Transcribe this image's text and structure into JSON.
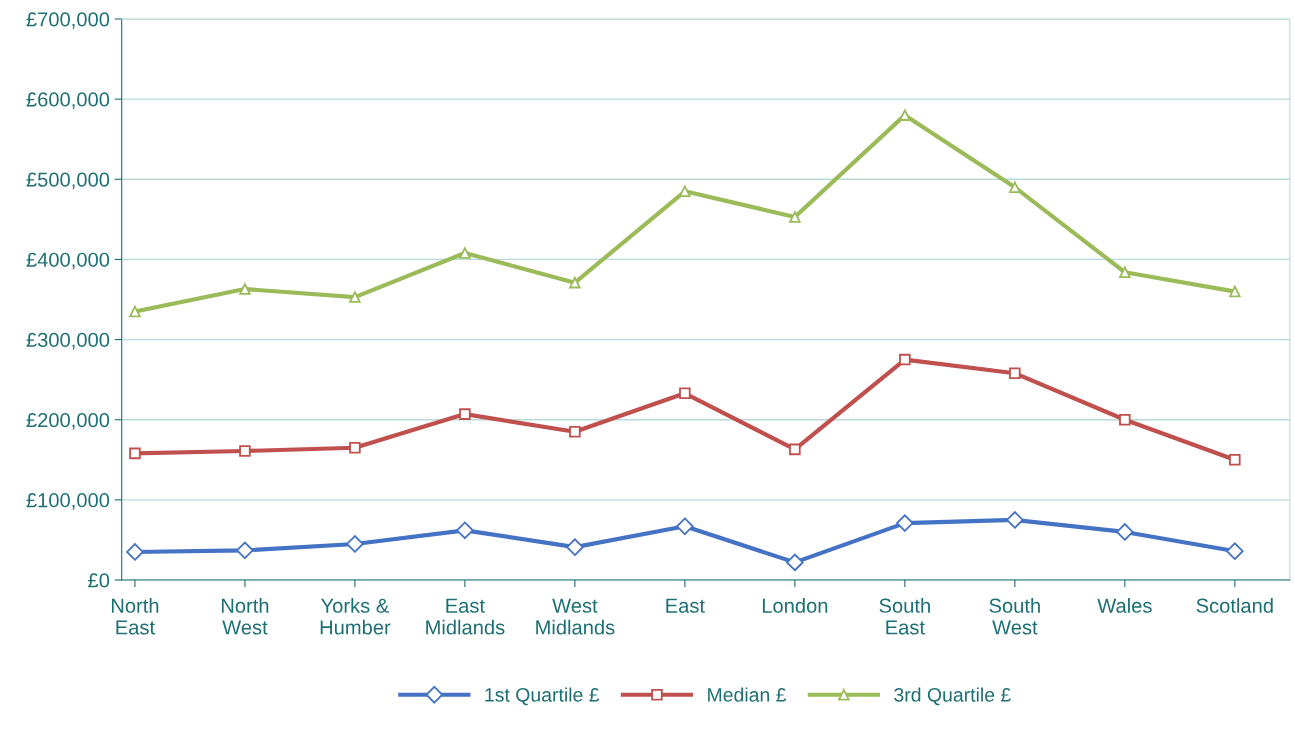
{
  "chart_data": {
    "type": "line",
    "categories": [
      "North\nEast",
      "North\nWest",
      "Yorks &\nHumber",
      "East\nMidlands",
      "West\nMidlands",
      "East",
      "London",
      "South\nEast",
      "South\nWest",
      "Wales",
      "Scotland"
    ],
    "series": [
      {
        "name": "1st Quartile £",
        "color": "#4472c4",
        "marker": "diamond",
        "values": [
          35000,
          37000,
          45000,
          62000,
          41000,
          67000,
          22000,
          71000,
          75000,
          60000,
          36000
        ]
      },
      {
        "name": "Median £",
        "color": "#c0504d",
        "marker": "square",
        "values": [
          158000,
          161000,
          165000,
          207000,
          185000,
          233000,
          163000,
          275000,
          258000,
          200000,
          150000
        ]
      },
      {
        "name": "3rd Quartile £",
        "color": "#9bbb59",
        "marker": "triangle",
        "values": [
          335000,
          363000,
          353000,
          408000,
          371000,
          485000,
          453000,
          580000,
          490000,
          384000,
          360000
        ]
      }
    ],
    "ylim": [
      0,
      700000
    ],
    "yticks": [
      {
        "value": 0,
        "label": "£0"
      },
      {
        "value": 100000,
        "label": "£100,000"
      },
      {
        "value": 200000,
        "label": "£200,000"
      },
      {
        "value": 300000,
        "label": "£300,000"
      },
      {
        "value": 400000,
        "label": "£400,000"
      },
      {
        "value": 500000,
        "label": "£500,000"
      },
      {
        "value": 600000,
        "label": "£600,000"
      },
      {
        "value": 700000,
        "label": "£700,000"
      }
    ],
    "grid": "y",
    "legend": "bottom",
    "line_style": "solid"
  }
}
